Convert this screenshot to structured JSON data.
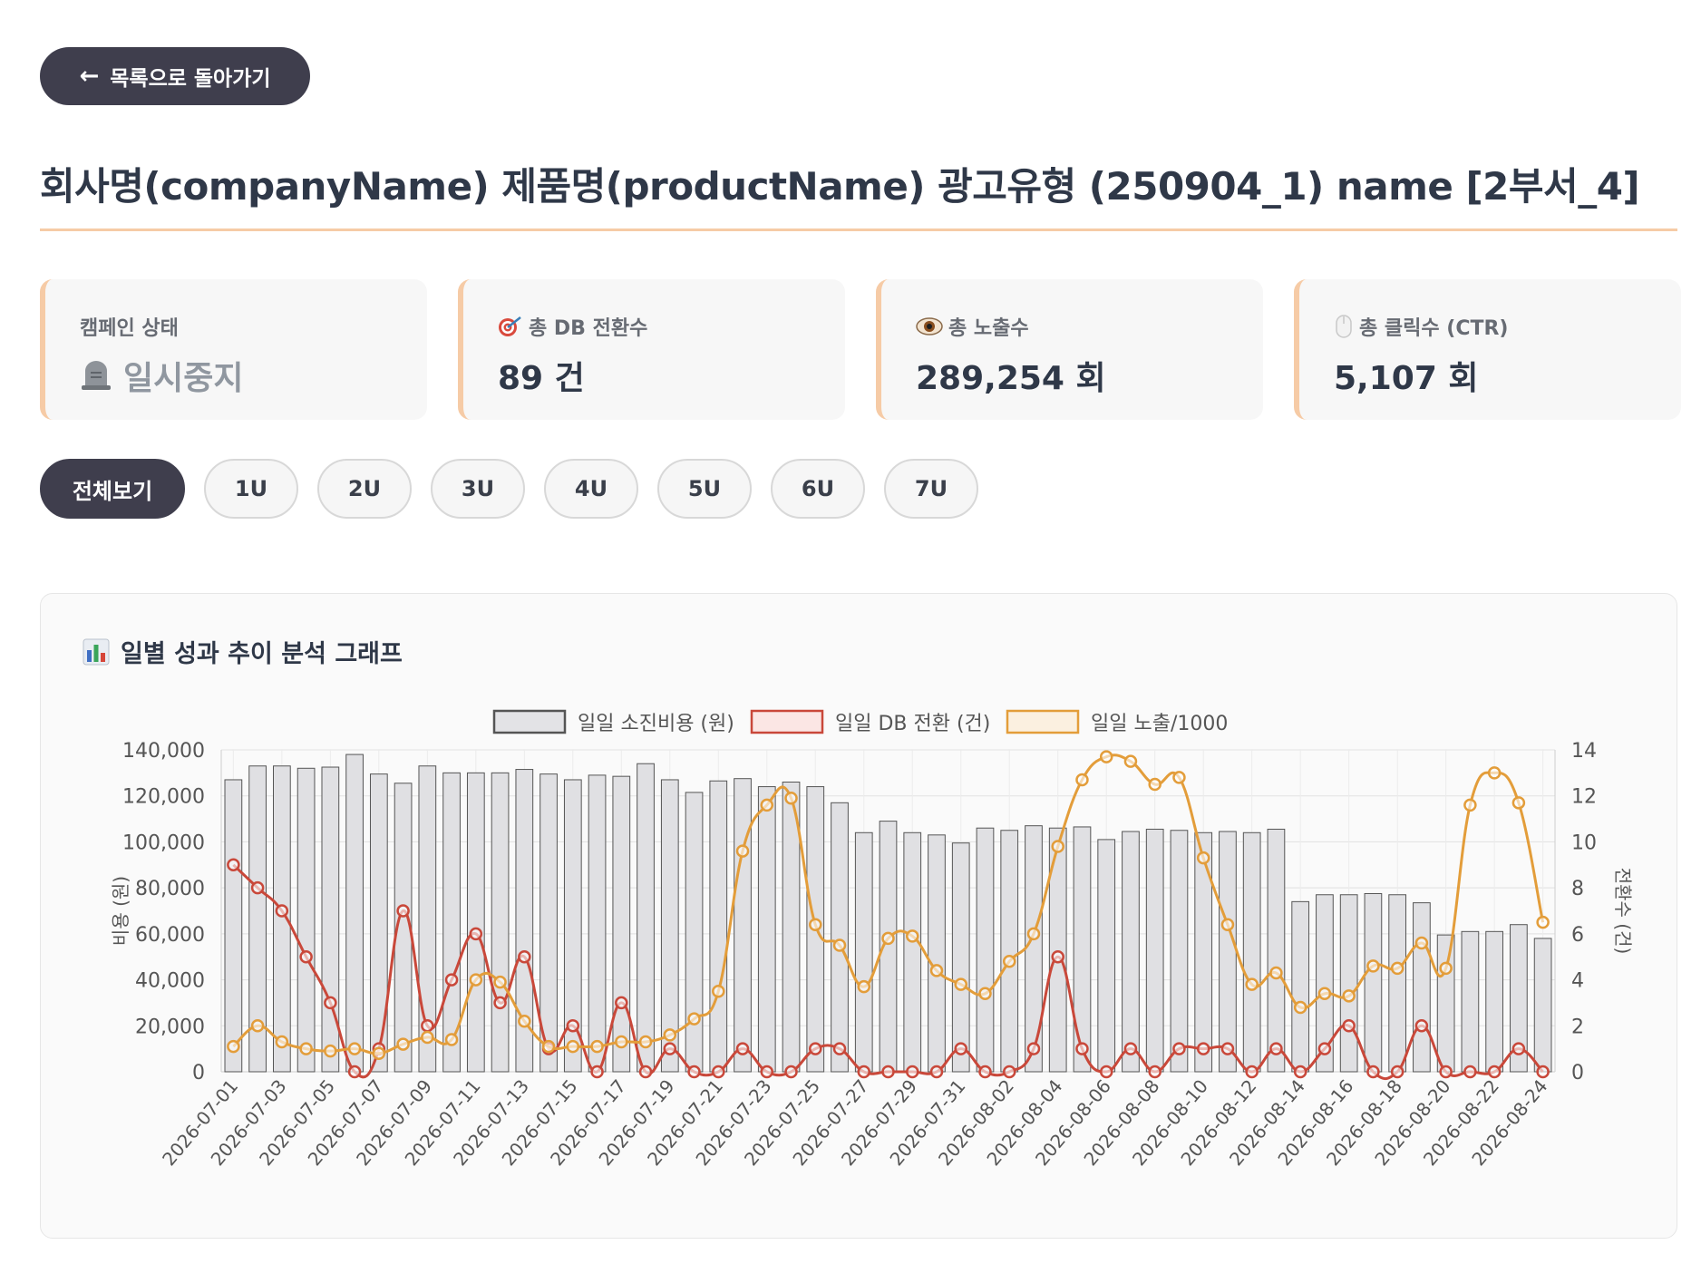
{
  "back_button": {
    "label": "목록으로 돌아가기"
  },
  "page_title": "회사명(companyName) 제품명(productName) 광고유형 (250904_1) name  [2부서_4]",
  "cards": [
    {
      "label": "캠페인 상태",
      "value": "일시중지",
      "icon": "tombstone-icon"
    },
    {
      "label": "총 DB 전환수",
      "value": "89 건",
      "icon": "target-icon"
    },
    {
      "label": "총 노출수",
      "value": "289,254 회",
      "icon": "eye-icon"
    },
    {
      "label": "총 클릭수 (CTR)",
      "value": "5,107 회",
      "icon": "mouse-icon"
    }
  ],
  "tabs": [
    "전체보기",
    "1U",
    "2U",
    "3U",
    "4U",
    "5U",
    "6U",
    "7U"
  ],
  "active_tab": "전체보기",
  "colors": {
    "spend": "#e0e0e3",
    "spend_border": "#555555",
    "db": "#c9483a",
    "impressions": "#e39d3a",
    "accent": "#f6cba6",
    "dark": "#3f3e4d"
  },
  "chart": {
    "title": "일별 성과 추이 분석 그래프",
    "icon": "bar-chart-icon"
  },
  "chart_data": {
    "type": "bar",
    "title": "일별 성과 추이 분석 그래프",
    "x": [
      "2026-07-01",
      "2026-07-02",
      "2026-07-03",
      "2026-07-04",
      "2026-07-05",
      "2026-07-06",
      "2026-07-07",
      "2026-07-08",
      "2026-07-09",
      "2026-07-10",
      "2026-07-11",
      "2026-07-12",
      "2026-07-13",
      "2026-07-14",
      "2026-07-15",
      "2026-07-16",
      "2026-07-17",
      "2026-07-18",
      "2026-07-19",
      "2026-07-20",
      "2026-07-21",
      "2026-07-22",
      "2026-07-23",
      "2026-07-24",
      "2026-07-25",
      "2026-07-26",
      "2026-07-27",
      "2026-07-28",
      "2026-07-29",
      "2026-07-30",
      "2026-07-31",
      "2026-08-01",
      "2026-08-02",
      "2026-08-03",
      "2026-08-04",
      "2026-08-05",
      "2026-08-06",
      "2026-08-07",
      "2026-08-08",
      "2026-08-09",
      "2026-08-10",
      "2026-08-11",
      "2026-08-12",
      "2026-08-13",
      "2026-08-14",
      "2026-08-15",
      "2026-08-16",
      "2026-08-17",
      "2026-08-18",
      "2026-08-19",
      "2026-08-20",
      "2026-08-21",
      "2026-08-22",
      "2026-08-23",
      "2026-08-24"
    ],
    "x_tick_labels": [
      "2026-07-01",
      "2026-07-03",
      "2026-07-05",
      "2026-07-07",
      "2026-07-09",
      "2026-07-11",
      "2026-07-13",
      "2026-07-15",
      "2026-07-17",
      "2026-07-19",
      "2026-07-21",
      "2026-07-23",
      "2026-07-25",
      "2026-07-27",
      "2026-07-29",
      "2026-07-31",
      "2026-08-02",
      "2026-08-04",
      "2026-08-06",
      "2026-08-08",
      "2026-08-10",
      "2026-08-12",
      "2026-08-14",
      "2026-08-16",
      "2026-08-18",
      "2026-08-20",
      "2026-08-22",
      "2026-08-24"
    ],
    "series": [
      {
        "name": "일일 소진비용 (원)",
        "type": "bar",
        "axis": "left",
        "values": [
          127000,
          133000,
          133000,
          132000,
          132500,
          138000,
          129500,
          125500,
          133000,
          130000,
          130000,
          130000,
          131500,
          129500,
          127000,
          129000,
          128500,
          134000,
          127000,
          121500,
          126500,
          127500,
          124000,
          126000,
          124000,
          117000,
          104000,
          109000,
          104000,
          103000,
          99500,
          106000,
          105000,
          107000,
          106000,
          106500,
          101000,
          104500,
          105500,
          105000,
          104000,
          104500,
          104000,
          105500,
          74000,
          77000,
          77000,
          77500,
          77000,
          73500,
          59500,
          61000,
          61000,
          64000,
          58000
        ]
      },
      {
        "name": "일일 DB 전환 (건)",
        "type": "line",
        "axis": "right",
        "values": [
          9,
          8,
          7,
          5,
          3,
          0,
          1,
          7,
          2,
          4,
          6,
          3,
          5,
          1,
          2,
          0,
          3,
          0,
          1,
          0,
          0,
          1,
          0,
          0,
          1,
          1,
          0,
          0,
          0,
          0,
          1,
          0,
          0,
          1,
          5,
          1,
          0,
          1,
          0,
          1,
          1,
          1,
          0,
          1,
          0,
          1,
          2,
          0,
          0,
          2,
          0,
          0,
          0,
          1,
          0
        ]
      },
      {
        "name": "일일 노출/1000",
        "type": "line",
        "axis": "left",
        "scale_note": "plotted on right axis units",
        "values": [
          1.1,
          2.0,
          1.3,
          1.0,
          0.9,
          1.0,
          0.8,
          1.2,
          1.5,
          1.4,
          4.0,
          3.9,
          2.2,
          1.1,
          1.1,
          1.1,
          1.3,
          1.3,
          1.6,
          2.3,
          3.5,
          9.6,
          11.6,
          11.9,
          6.4,
          5.5,
          3.7,
          5.8,
          5.9,
          4.4,
          3.8,
          3.4,
          4.8,
          6.0,
          9.8,
          12.7,
          13.7,
          13.5,
          12.5,
          12.8,
          9.3,
          6.4,
          3.8,
          4.3,
          2.8,
          3.4,
          3.3,
          4.6,
          4.5,
          5.6,
          4.5,
          11.6,
          13.0,
          11.7,
          6.5
        ]
      }
    ],
    "ylabel": "비용 (원)",
    "y2label": "전환수 (건)",
    "ylim": [
      0,
      140000
    ],
    "yticks": [
      "0",
      "20,000",
      "40,000",
      "60,000",
      "80,000",
      "100,000",
      "120,000",
      "140,000"
    ],
    "y2lim": [
      0,
      14
    ],
    "y2ticks": [
      "0",
      "2",
      "4",
      "6",
      "8",
      "10",
      "12",
      "14"
    ],
    "grid": true,
    "legend": "top-center"
  }
}
